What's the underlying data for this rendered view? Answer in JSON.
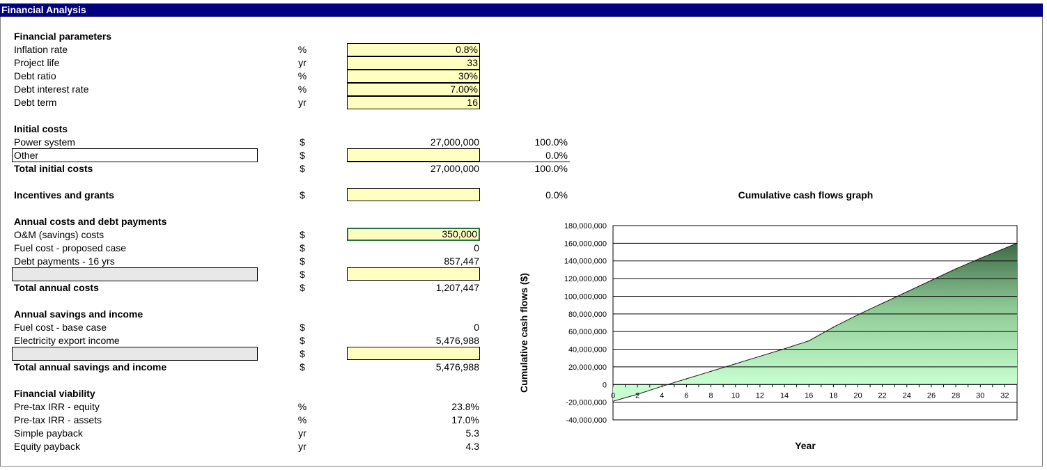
{
  "title": "Financial Analysis",
  "financial_parameters": {
    "heading": "Financial parameters",
    "rows": [
      {
        "label": "Inflation rate",
        "unit": "%",
        "value": "0.8%"
      },
      {
        "label": "Project life",
        "unit": "yr",
        "value": "33"
      },
      {
        "label": "Debt ratio",
        "unit": "%",
        "value": "30%"
      },
      {
        "label": "Debt interest rate",
        "unit": "%",
        "value": "7.00%"
      },
      {
        "label": "Debt term",
        "unit": "yr",
        "value": "16"
      }
    ]
  },
  "initial_costs": {
    "heading": "Initial costs",
    "power_system": {
      "label": "Power system",
      "unit": "$",
      "value": "27,000,000",
      "pct": "100.0%"
    },
    "other": {
      "label": "Other",
      "unit": "$",
      "value": "",
      "pct": "0.0%"
    },
    "total": {
      "label": "Total initial costs",
      "unit": "$",
      "value": "27,000,000",
      "pct": "100.0%"
    }
  },
  "incentives": {
    "label": "Incentives and grants",
    "unit": "$",
    "value": "",
    "pct": "0.0%"
  },
  "annual_costs": {
    "heading": "Annual costs and debt payments",
    "om": {
      "label": "O&M (savings) costs",
      "unit": "$",
      "value": "350,000"
    },
    "fuel": {
      "label": "Fuel cost - proposed case",
      "unit": "$",
      "value": "0"
    },
    "debt": {
      "label": "Debt payments - 16 yrs",
      "unit": "$",
      "value": "857,447"
    },
    "blank": {
      "label": "",
      "unit": "$",
      "value": ""
    },
    "total": {
      "label": "Total annual costs",
      "unit": "$",
      "value": "1,207,447"
    }
  },
  "annual_savings": {
    "heading": "Annual savings and income",
    "fuel_base": {
      "label": "Fuel cost - base case",
      "unit": "$",
      "value": "0"
    },
    "export": {
      "label": "Electricity export income",
      "unit": "$",
      "value": "5,476,988"
    },
    "blank": {
      "label": "",
      "unit": "$",
      "value": ""
    },
    "total": {
      "label": "Total annual savings and income",
      "unit": "$",
      "value": "5,476,988"
    }
  },
  "viability": {
    "heading": "Financial viability",
    "rows": [
      {
        "label": "Pre-tax IRR - equity",
        "unit": "%",
        "value": "23.8%"
      },
      {
        "label": "Pre-tax IRR - assets",
        "unit": "%",
        "value": "17.0%"
      },
      {
        "label": "Simple payback",
        "unit": "yr",
        "value": "5.3"
      },
      {
        "label": "Equity payback",
        "unit": "yr",
        "value": "4.3"
      }
    ]
  },
  "chart_data": {
    "type": "area",
    "title": "Cumulative cash flows graph",
    "xlabel": "Year",
    "ylabel": "Cumulative cash flows ($)",
    "xlim": [
      0,
      33
    ],
    "ylim": [
      -40000000,
      180000000
    ],
    "x_ticks": [
      0,
      2,
      4,
      6,
      8,
      10,
      12,
      14,
      16,
      18,
      20,
      22,
      24,
      26,
      28,
      30,
      32
    ],
    "y_ticks": [
      {
        "value": 180000000,
        "label": "180,000,000"
      },
      {
        "value": 160000000,
        "label": "160,000,000"
      },
      {
        "value": 140000000,
        "label": "140,000,000"
      },
      {
        "value": 120000000,
        "label": "120,000,000"
      },
      {
        "value": 100000000,
        "label": "100,000,000"
      },
      {
        "value": 80000000,
        "label": "80,000,000"
      },
      {
        "value": 60000000,
        "label": "60,000,000"
      },
      {
        "value": 40000000,
        "label": "40,000,000"
      },
      {
        "value": 20000000,
        "label": "20,000,000"
      },
      {
        "value": 0,
        "label": "0"
      },
      {
        "value": -20000000,
        "label": "-20,000,000"
      },
      {
        "value": -40000000,
        "label": "-40,000,000"
      }
    ],
    "grid": true,
    "series": [
      {
        "x": [
          0,
          2,
          4,
          6,
          8,
          10,
          12,
          14,
          16,
          18,
          20,
          22,
          24,
          26,
          28,
          30,
          33
        ],
        "values": [
          -18900000,
          -11000000,
          -2000000,
          6500000,
          15000000,
          23500000,
          32000000,
          40500000,
          49500000,
          65000000,
          79000000,
          92000000,
          105000000,
          118000000,
          131000000,
          143000000,
          160000000
        ]
      }
    ],
    "fill_colors": [
      "#3f6a47",
      "#c8ffd0"
    ]
  }
}
